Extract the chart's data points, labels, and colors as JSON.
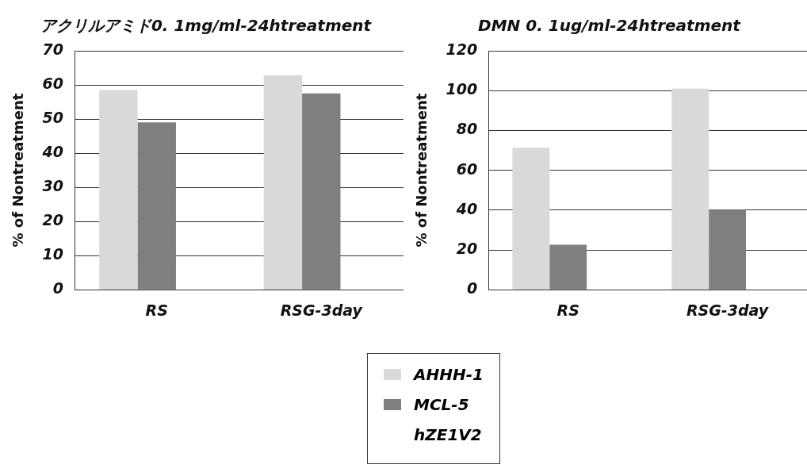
{
  "chart_data": [
    {
      "type": "bar",
      "title": "アクリルアミド0. 1mg/ml-24htreatment",
      "ylabel": "% of Nontreatment",
      "categories": [
        "RS",
        "RSG-3day"
      ],
      "series": [
        {
          "name": "AHHH-1",
          "color": "#d9d9d9",
          "values": [
            58.5,
            62.8
          ]
        },
        {
          "name": "MCL-5",
          "color": "#7f7f7f",
          "values": [
            49,
            57.5
          ]
        },
        {
          "name": "hZE1V2",
          "values": [
            null,
            null
          ]
        }
      ],
      "ylim": [
        0,
        70
      ],
      "yticks": [
        0,
        10,
        20,
        30,
        40,
        50,
        60,
        70
      ],
      "grid": "y",
      "legend": "bottom"
    },
    {
      "type": "bar",
      "title": "DMN 0. 1ug/ml-24htreatment",
      "ylabel": "% of Nontreatment",
      "categories": [
        "RS",
        "RSG-3day"
      ],
      "series": [
        {
          "color": "#d9d9d9",
          "values": [
            71.3,
            101
          ]
        },
        {
          "color": "#7f7f7f",
          "values": [
            22.6,
            40.2
          ]
        },
        {
          "values": [
            null,
            null
          ]
        }
      ],
      "ylim": [
        0,
        120
      ],
      "yticks": [
        0,
        20,
        40,
        60,
        80,
        100,
        120
      ],
      "grid": "y"
    }
  ]
}
